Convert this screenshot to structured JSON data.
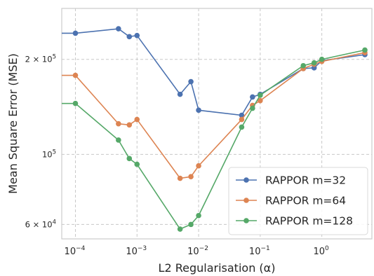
{
  "chart_data": {
    "type": "line",
    "x_scale": "log",
    "y_scale": "log",
    "xlabel": "L2 Regularisation (α)",
    "ylabel": "Mean Square Error (MSE)",
    "xlim": [
      6e-05,
      6.5
    ],
    "ylim": [
      54000,
      290000
    ],
    "grid": true,
    "legend_position": "lower-right",
    "x_ticks": [
      {
        "value": 0.0001,
        "base": "10",
        "exp": "−4"
      },
      {
        "value": 0.001,
        "base": "10",
        "exp": "−3"
      },
      {
        "value": 0.01,
        "base": "10",
        "exp": "−2"
      },
      {
        "value": 0.1,
        "base": "10",
        "exp": "−1"
      },
      {
        "value": 1,
        "base": "10",
        "exp": "0"
      }
    ],
    "y_ticks": [
      {
        "value": 60000,
        "mant": "6 × 10",
        "exp": "4"
      },
      {
        "value": 100000,
        "mant": "10",
        "exp": "5"
      },
      {
        "value": 200000,
        "mant": "2 × 10",
        "exp": "5"
      }
    ],
    "x": [
      6e-05,
      0.0001,
      0.0005,
      0.00075,
      0.001,
      0.005,
      0.0075,
      0.01,
      0.05,
      0.075,
      0.1,
      0.5,
      0.75,
      1,
      5
    ],
    "series": [
      {
        "name": "RAPPOR m=32",
        "color": "#4c72b0",
        "values": [
          242000,
          242000,
          250000,
          236000,
          238000,
          155000,
          170000,
          138000,
          133000,
          152000,
          155000,
          187000,
          188000,
          198000,
          207000
        ]
      },
      {
        "name": "RAPPOR m=64",
        "color": "#dd8452",
        "values": [
          178000,
          178000,
          125000,
          124000,
          129000,
          84000,
          85000,
          92000,
          129000,
          143000,
          148000,
          187000,
          193000,
          197000,
          210000
        ]
      },
      {
        "name": "RAPPOR m=128",
        "color": "#55a868",
        "values": [
          145000,
          145000,
          111000,
          97000,
          93000,
          58000,
          60000,
          64000,
          122000,
          140000,
          154000,
          191000,
          195000,
          200000,
          214000
        ]
      }
    ]
  }
}
